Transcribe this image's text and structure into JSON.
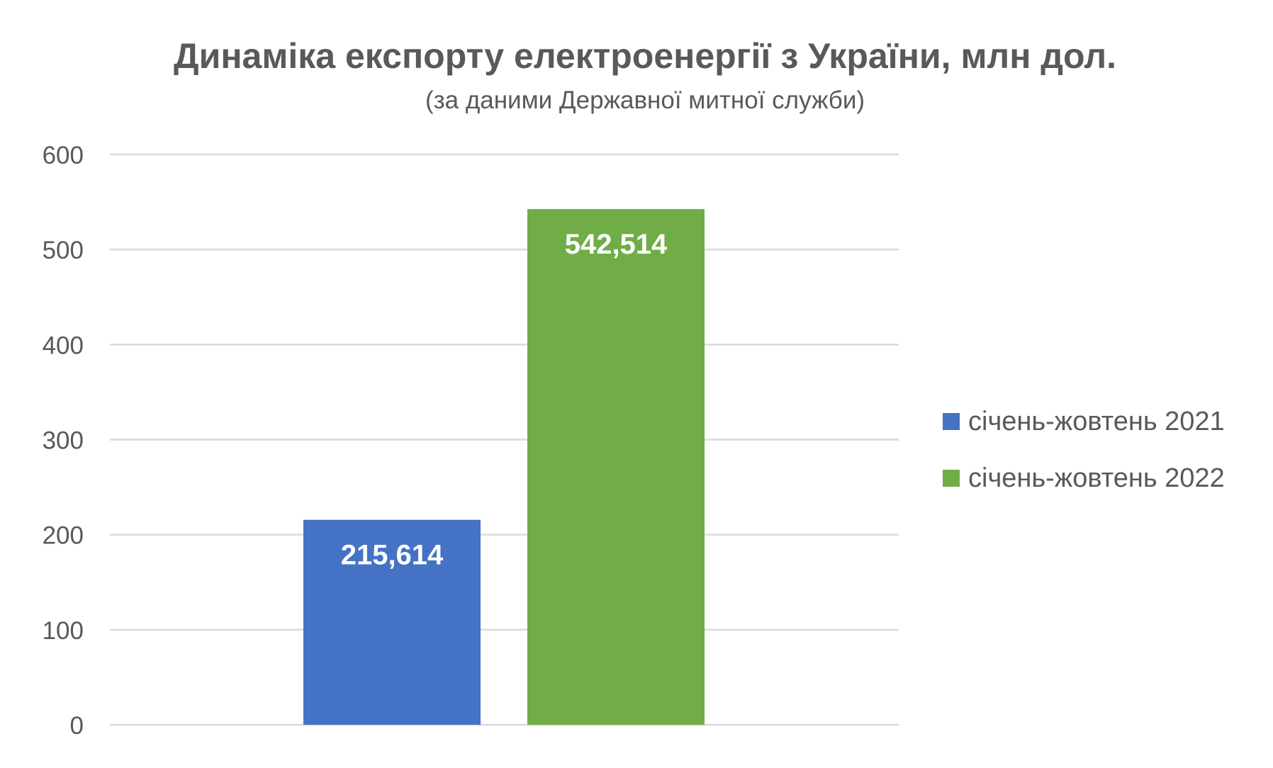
{
  "chart_data": {
    "type": "bar",
    "title": "Динаміка експорту електроенергії з України, млн дол.",
    "subtitle": "(за даними Державної митної служби)",
    "categories": [
      ""
    ],
    "series": [
      {
        "name": "січень-жовтень 2021",
        "values": [
          215.614
        ],
        "label": "215,614",
        "color": "#4472C4"
      },
      {
        "name": "січень-жовтень 2022",
        "values": [
          542.514
        ],
        "label": "542,514",
        "color": "#70AD47"
      }
    ],
    "xlabel": "",
    "ylabel": "",
    "ylim": [
      0,
      600
    ],
    "yticks": [
      0,
      100,
      200,
      300,
      400,
      500,
      600
    ],
    "grid": true,
    "legend_position": "right"
  },
  "colors": {
    "text": "#595959",
    "grid": "#D9D9D9",
    "data_label": "#FFFFFF"
  }
}
